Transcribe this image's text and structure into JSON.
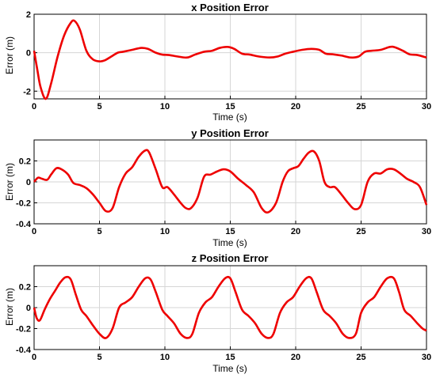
{
  "figure": {
    "line_color": "#ee0000",
    "x_ticks": [
      "0",
      "5",
      "10",
      "15",
      "20",
      "25",
      "30"
    ]
  },
  "chart_data": [
    {
      "type": "line",
      "title": "x Position Error",
      "xlabel": "Time (s)",
      "ylabel": "Error (m)",
      "xlim": [
        0,
        30
      ],
      "ylim": [
        -2.4,
        2
      ],
      "yticks": [
        -2,
        0,
        2
      ],
      "y_tick_labels": [
        "-2",
        "0",
        "2"
      ],
      "grid": true,
      "x": [
        0,
        0.25,
        0.5,
        0.9,
        1.3,
        1.8,
        2.3,
        2.8,
        3.1,
        3.5,
        4.0,
        4.5,
        5.0,
        5.4,
        5.9,
        6.4,
        6.8,
        7.5,
        8.2,
        8.7,
        9.3,
        9.8,
        10.3,
        11.0,
        11.7,
        12.3,
        13.0,
        13.6,
        14.2,
        14.8,
        15.3,
        15.9,
        16.5,
        17.2,
        18.0,
        18.6,
        19.2,
        19.8,
        20.5,
        21.2,
        21.8,
        22.3,
        22.8,
        23.5,
        24.2,
        24.8,
        25.3,
        25.8,
        26.5,
        27.2,
        27.6,
        28.2,
        28.7,
        29.3,
        30.0
      ],
      "series": [
        {
          "values": [
            0.1,
            -0.9,
            -1.8,
            -2.4,
            -1.6,
            -0.2,
            0.9,
            1.55,
            1.65,
            1.2,
            0.1,
            -0.35,
            -0.45,
            -0.4,
            -0.2,
            0.0,
            0.05,
            0.15,
            0.25,
            0.2,
            0.0,
            -0.1,
            -0.12,
            -0.2,
            -0.25,
            -0.1,
            0.05,
            0.1,
            0.25,
            0.3,
            0.2,
            -0.05,
            -0.1,
            -0.2,
            -0.25,
            -0.2,
            -0.05,
            0.05,
            0.15,
            0.2,
            0.15,
            -0.05,
            -0.08,
            -0.15,
            -0.25,
            -0.2,
            0.05,
            0.1,
            0.15,
            0.3,
            0.28,
            0.1,
            -0.08,
            -0.12,
            -0.25
          ]
        }
      ]
    },
    {
      "type": "line",
      "title": "y Position Error",
      "xlabel": "Time (s)",
      "ylabel": "Error (m)",
      "xlim": [
        0,
        30
      ],
      "ylim": [
        -0.4,
        0.4
      ],
      "yticks": [
        -0.4,
        -0.2,
        0,
        0.2
      ],
      "y_tick_labels": [
        "-0.4",
        "-0.2",
        "0",
        "0.2"
      ],
      "grid": true,
      "x": [
        0,
        0.3,
        0.6,
        1.0,
        1.3,
        1.7,
        2.1,
        2.6,
        3.0,
        3.5,
        4.0,
        4.5,
        5.0,
        5.5,
        6.0,
        6.5,
        7.0,
        7.5,
        8.0,
        8.5,
        8.8,
        9.3,
        9.8,
        10.2,
        10.7,
        11.2,
        11.6,
        12.0,
        12.5,
        13.0,
        13.5,
        14.0,
        14.5,
        15.0,
        15.6,
        16.2,
        16.8,
        17.4,
        17.9,
        18.5,
        19.0,
        19.4,
        19.8,
        20.2,
        20.6,
        21.0,
        21.4,
        21.8,
        22.2,
        22.6,
        23.0,
        23.5,
        24.0,
        24.5,
        25.0,
        25.5,
        26.0,
        26.5,
        27.0,
        27.5,
        28.0,
        28.5,
        29.0,
        29.5,
        30.0
      ],
      "series": [
        {
          "values": [
            0.0,
            0.04,
            0.03,
            0.02,
            0.07,
            0.13,
            0.12,
            0.07,
            -0.01,
            -0.03,
            -0.06,
            -0.12,
            -0.2,
            -0.28,
            -0.25,
            -0.05,
            0.08,
            0.14,
            0.24,
            0.3,
            0.28,
            0.12,
            -0.05,
            -0.05,
            -0.12,
            -0.2,
            -0.25,
            -0.25,
            -0.15,
            0.05,
            0.07,
            0.1,
            0.12,
            0.1,
            0.03,
            -0.03,
            -0.1,
            -0.25,
            -0.29,
            -0.2,
            0.0,
            0.1,
            0.13,
            0.15,
            0.22,
            0.28,
            0.29,
            0.2,
            0.0,
            -0.05,
            -0.05,
            -0.12,
            -0.2,
            -0.26,
            -0.22,
            0.0,
            0.08,
            0.08,
            0.12,
            0.12,
            0.08,
            0.03,
            0.0,
            -0.05,
            -0.22
          ]
        }
      ]
    },
    {
      "type": "line",
      "title": "z Position Error",
      "xlabel": "Time (s)",
      "ylabel": "Error (m)",
      "xlim": [
        0,
        30
      ],
      "ylim": [
        -0.4,
        0.4
      ],
      "yticks": [
        -0.4,
        -0.2,
        0,
        0.2
      ],
      "y_tick_labels": [
        "-0.4",
        "-0.2",
        "0",
        "0.2"
      ],
      "grid": true,
      "x": [
        0,
        0.2,
        0.45,
        0.8,
        1.2,
        1.6,
        2.0,
        2.4,
        2.8,
        3.2,
        3.6,
        4.0,
        4.5,
        5.0,
        5.5,
        6.0,
        6.5,
        7.0,
        7.5,
        8.0,
        8.5,
        8.9,
        9.3,
        9.8,
        10.2,
        10.7,
        11.2,
        11.7,
        12.1,
        12.6,
        13.1,
        13.6,
        14.1,
        14.6,
        15.0,
        15.4,
        15.9,
        16.4,
        16.9,
        17.4,
        17.9,
        18.3,
        18.8,
        19.3,
        19.8,
        20.3,
        20.8,
        21.2,
        21.6,
        22.1,
        22.6,
        23.1,
        23.6,
        24.1,
        24.6,
        25.0,
        25.5,
        26.0,
        26.5,
        27.0,
        27.5,
        27.9,
        28.3,
        28.8,
        29.3,
        29.7,
        30.0
      ],
      "series": [
        {
          "values": [
            0.0,
            -0.1,
            -0.12,
            -0.02,
            0.08,
            0.16,
            0.24,
            0.29,
            0.27,
            0.12,
            -0.02,
            -0.08,
            -0.17,
            -0.25,
            -0.29,
            -0.2,
            0.0,
            0.05,
            0.1,
            0.2,
            0.28,
            0.27,
            0.15,
            -0.02,
            -0.08,
            -0.15,
            -0.25,
            -0.29,
            -0.25,
            -0.05,
            0.05,
            0.1,
            0.2,
            0.28,
            0.28,
            0.15,
            -0.02,
            -0.08,
            -0.15,
            -0.25,
            -0.29,
            -0.25,
            -0.05,
            0.05,
            0.1,
            0.2,
            0.28,
            0.28,
            0.15,
            -0.02,
            -0.08,
            -0.15,
            -0.25,
            -0.29,
            -0.25,
            -0.05,
            0.05,
            0.1,
            0.2,
            0.28,
            0.28,
            0.15,
            -0.02,
            -0.08,
            -0.15,
            -0.2,
            -0.22
          ]
        }
      ]
    }
  ]
}
